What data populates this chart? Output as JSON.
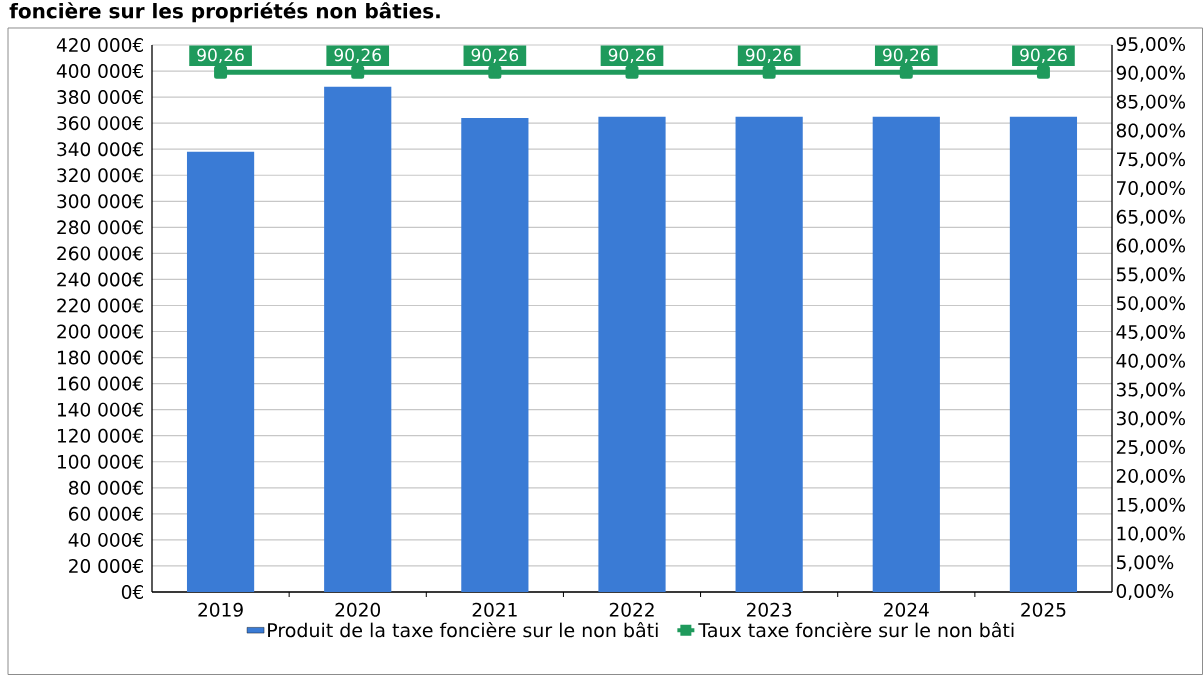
{
  "chart_data": {
    "type": "bar",
    "title": "foncière sur les propriétés non bâties.",
    "categories": [
      "2019",
      "2020",
      "2021",
      "2022",
      "2023",
      "2024",
      "2025"
    ],
    "series": [
      {
        "name": "Produit de la taxe foncière sur le non bâti",
        "color": "#3a7bd5",
        "values": [
          338000,
          388000,
          364000,
          365000,
          365000,
          365000,
          365000
        ]
      },
      {
        "name": "Taux taxe foncière sur le non bâti",
        "type": "line",
        "axis": "y2",
        "color": "#1f9a5c",
        "values": [
          90.26,
          90.26,
          90.26,
          90.26,
          90.26,
          90.26,
          90.26
        ],
        "value_labels": [
          "90,26",
          "90,26",
          "90,26",
          "90,26",
          "90,26",
          "90,26",
          "90,26"
        ]
      }
    ],
    "ylim": [
      0,
      420000
    ],
    "yticks": [
      {
        "value": 0,
        "label": "0€"
      },
      {
        "value": 20000,
        "label": "20 000€"
      },
      {
        "value": 40000,
        "label": "40 000€"
      },
      {
        "value": 60000,
        "label": "60 000€"
      },
      {
        "value": 80000,
        "label": "80 000€"
      },
      {
        "value": 100000,
        "label": "100 000€"
      },
      {
        "value": 120000,
        "label": "120 000€"
      },
      {
        "value": 140000,
        "label": "140 000€"
      },
      {
        "value": 160000,
        "label": "160 000€"
      },
      {
        "value": 180000,
        "label": "180 000€"
      },
      {
        "value": 200000,
        "label": "200 000€"
      },
      {
        "value": 220000,
        "label": "220 000€"
      },
      {
        "value": 240000,
        "label": "240 000€"
      },
      {
        "value": 260000,
        "label": "260 000€"
      },
      {
        "value": 280000,
        "label": "280 000€"
      },
      {
        "value": 300000,
        "label": "300 000€"
      },
      {
        "value": 320000,
        "label": "320 000€"
      },
      {
        "value": 340000,
        "label": "340 000€"
      },
      {
        "value": 360000,
        "label": "360 000€"
      },
      {
        "value": 380000,
        "label": "380 000€"
      },
      {
        "value": 400000,
        "label": "400 000€"
      },
      {
        "value": 420000,
        "label": "420 000€"
      }
    ],
    "y2lim": [
      0,
      95
    ],
    "y2ticks": [
      {
        "value": 0,
        "label": "0,00%"
      },
      {
        "value": 5,
        "label": "5,00%"
      },
      {
        "value": 10,
        "label": "10,00%"
      },
      {
        "value": 15,
        "label": "15,00%"
      },
      {
        "value": 20,
        "label": "20,00%"
      },
      {
        "value": 25,
        "label": "25,00%"
      },
      {
        "value": 30,
        "label": "30,00%"
      },
      {
        "value": 35,
        "label": "35,00%"
      },
      {
        "value": 40,
        "label": "40,00%"
      },
      {
        "value": 45,
        "label": "45,00%"
      },
      {
        "value": 50,
        "label": "50,00%"
      },
      {
        "value": 55,
        "label": "55,00%"
      },
      {
        "value": 60,
        "label": "60,00%"
      },
      {
        "value": 65,
        "label": "65,00%"
      },
      {
        "value": 70,
        "label": "70,00%"
      },
      {
        "value": 75,
        "label": "75,00%"
      },
      {
        "value": 80,
        "label": "80,00%"
      },
      {
        "value": 85,
        "label": "85,00%"
      },
      {
        "value": 90,
        "label": "90,00%"
      },
      {
        "value": 95,
        "label": "95,00%"
      }
    ],
    "grid": "y",
    "legend": "bottom",
    "marker": "square",
    "line_style": "solid"
  }
}
